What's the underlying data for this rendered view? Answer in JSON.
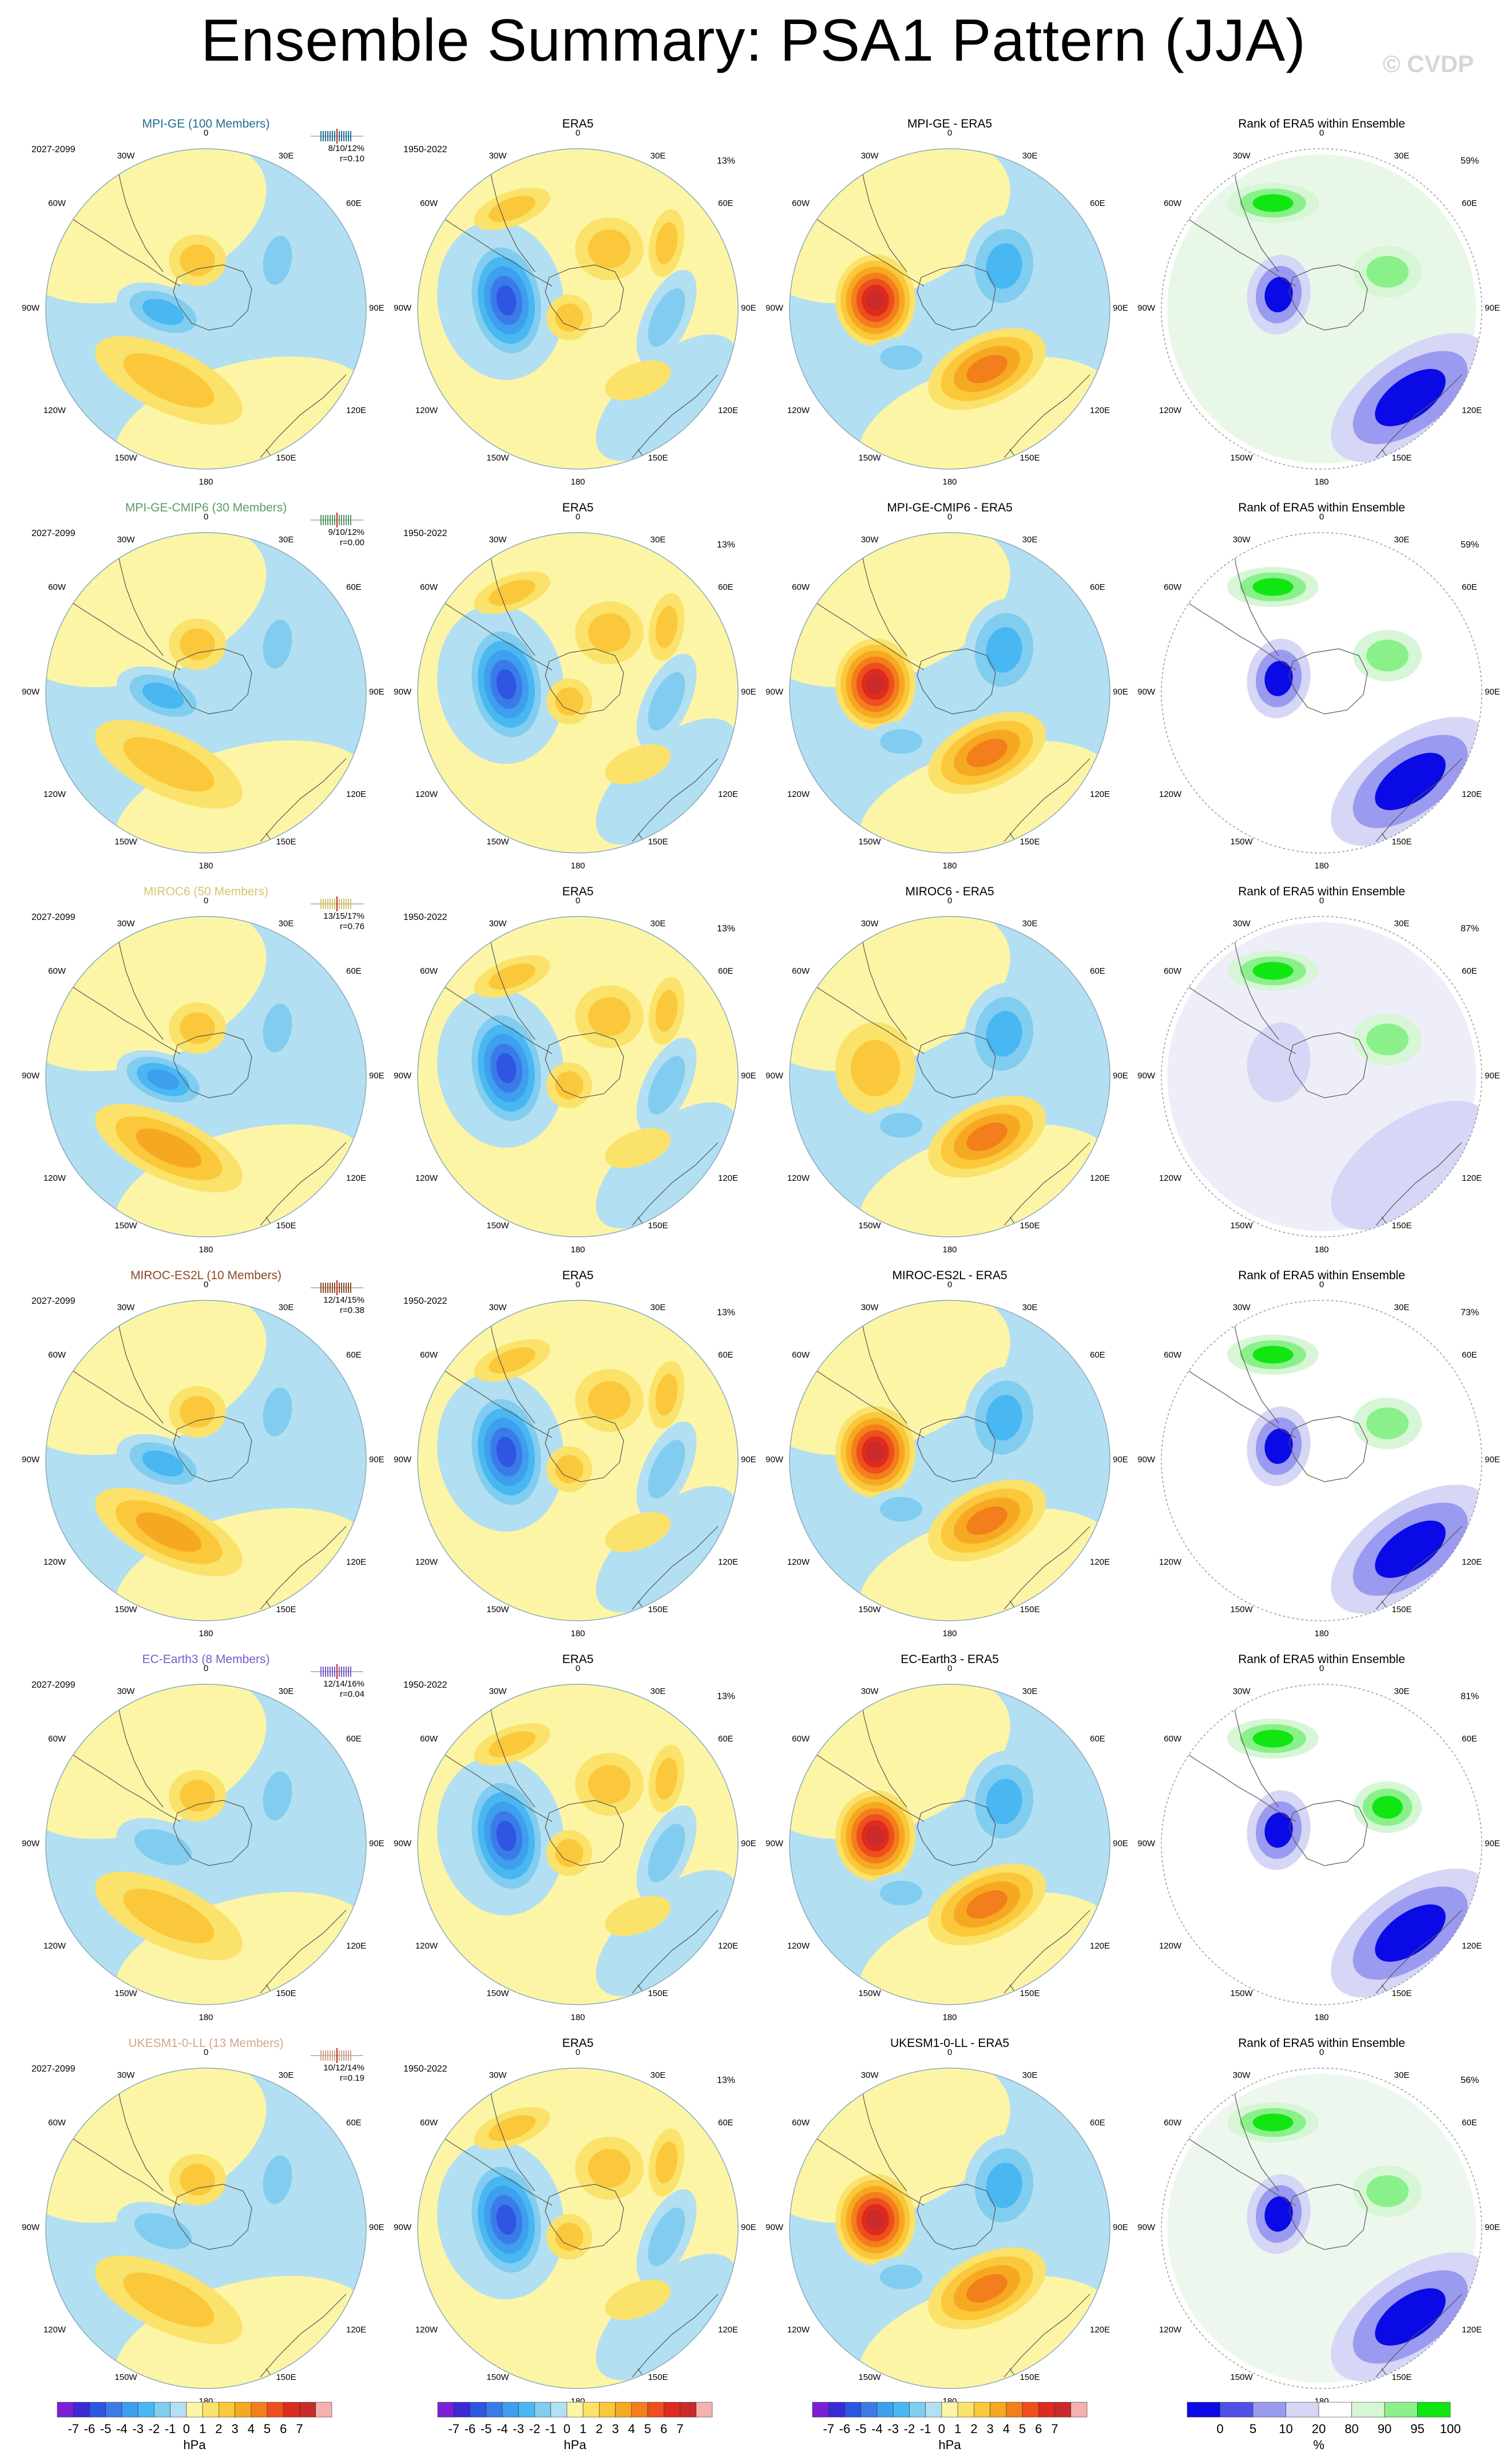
{
  "figure": {
    "title": "Ensemble Summary: PSA1 Pattern (JJA)",
    "copyright": "© CVDP"
  },
  "column_titles": {
    "era5": "ERA5",
    "rank": "Rank of ERA5 within Ensemble"
  },
  "period_labels": {
    "model": "2027-2099",
    "obs": "1950-2022"
  },
  "map_labels": [
    "0",
    "30E",
    "60E",
    "90E",
    "120E",
    "150E",
    "180",
    "150W",
    "120W",
    "90W",
    "60W",
    "30W"
  ],
  "rows": [
    {
      "model": "MPI-GE (100 Members)",
      "color": "#1f6f93",
      "stats1": "8/10/12%",
      "stats2": "r=0.10",
      "era5_pct": "13%",
      "diff_title": "MPI-GE - ERA5",
      "rank_pct": "59%"
    },
    {
      "model": "MPI-GE-CMIP6 (30 Members)",
      "color": "#5a9a6a",
      "stats1": "9/10/12%",
      "stats2": "r=0.00",
      "era5_pct": "13%",
      "diff_title": "MPI-GE-CMIP6 - ERA5",
      "rank_pct": "59%"
    },
    {
      "model": "MIROC6 (50 Members)",
      "color": "#d6c56a",
      "stats1": "13/15/17%",
      "stats2": "r=0.76",
      "era5_pct": "13%",
      "diff_title": "MIROC6 - ERA5",
      "rank_pct": "87%"
    },
    {
      "model": "MIROC-ES2L (10 Members)",
      "color": "#8a4a22",
      "stats1": "12/14/15%",
      "stats2": "r=0.38",
      "era5_pct": "13%",
      "diff_title": "MIROC-ES2L - ERA5",
      "rank_pct": "73%"
    },
    {
      "model": "EC-Earth3 (8 Members)",
      "color": "#7a5acb",
      "stats1": "12/14/16%",
      "stats2": "r=0.04",
      "era5_pct": "13%",
      "diff_title": "EC-Earth3 - ERA5",
      "rank_pct": "81%"
    },
    {
      "model": "UKESM1-0-LL (13 Members)",
      "color": "#d4a58a",
      "stats1": "10/12/14%",
      "stats2": "r=0.19",
      "era5_pct": "13%",
      "diff_title": "UKESM1-0-LL - ERA5",
      "rank_pct": "56%"
    }
  ],
  "colorbars": {
    "hpa": {
      "labels": [
        "-7",
        "-6",
        "-5",
        "-4",
        "-3",
        "-2",
        "-1",
        "0",
        "1",
        "2",
        "3",
        "4",
        "5",
        "6",
        "7"
      ],
      "unit": "hPa",
      "colors": [
        "#7b1fd6",
        "#3a2bd6",
        "#2e56e0",
        "#3b7be8",
        "#3d9fee",
        "#48b7f2",
        "#80cdf0",
        "#b3dff2",
        "#fdf5a6",
        "#fbe26a",
        "#fac83a",
        "#f7a822",
        "#f37e1c",
        "#ee4f1d",
        "#dd2b1f",
        "#c92a2a",
        "#f3b2ad"
      ]
    },
    "percent": {
      "labels": [
        "0",
        "5",
        "10",
        "20",
        "80",
        "90",
        "95",
        "100"
      ],
      "unit": "%",
      "colors": [
        "#0a0ae6",
        "#5050e6",
        "#9a9af0",
        "#d6d6f6",
        "#ffffff",
        "#d6f6d6",
        "#8af08a",
        "#12e612"
      ]
    }
  }
}
